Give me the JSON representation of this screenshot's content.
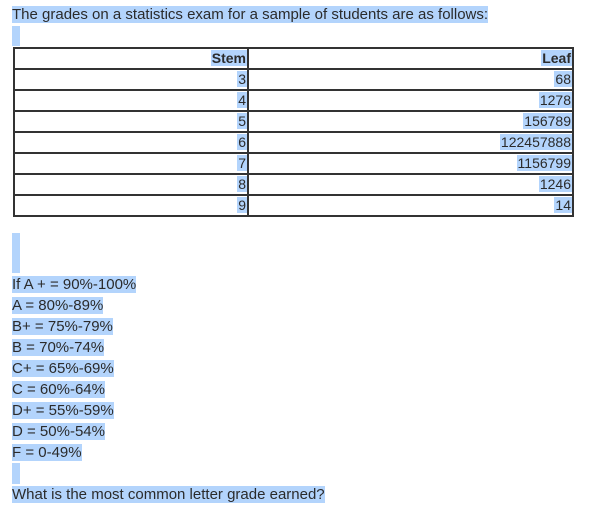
{
  "intro": "The grades on a statistics exam for a sample of students are as follows:",
  "table": {
    "headers": {
      "stem": "Stem",
      "leaf": "Leaf"
    },
    "rows": [
      {
        "stem": "3",
        "leaf": "68"
      },
      {
        "stem": "4",
        "leaf": "1278"
      },
      {
        "stem": "5",
        "leaf": "156789"
      },
      {
        "stem": "6",
        "leaf": "122457888"
      },
      {
        "stem": "7",
        "leaf": "1156799"
      },
      {
        "stem": "8",
        "leaf": "1246"
      },
      {
        "stem": "9",
        "leaf": "14"
      }
    ]
  },
  "grades": [
    "If A + = 90%-100%",
    "A = 80%-89%",
    "B+ = 75%-79%",
    "B = 70%-74%",
    "C+ = 65%-69%",
    "C = 60%-64%",
    "D+ = 55%-59%",
    "D = 50%-54%",
    "F = 0-49%"
  ],
  "question": "What is the most common letter grade earned?",
  "colors": {
    "selection": "#b3d4fc",
    "text": "#2b2b2b",
    "border": "#333333"
  }
}
